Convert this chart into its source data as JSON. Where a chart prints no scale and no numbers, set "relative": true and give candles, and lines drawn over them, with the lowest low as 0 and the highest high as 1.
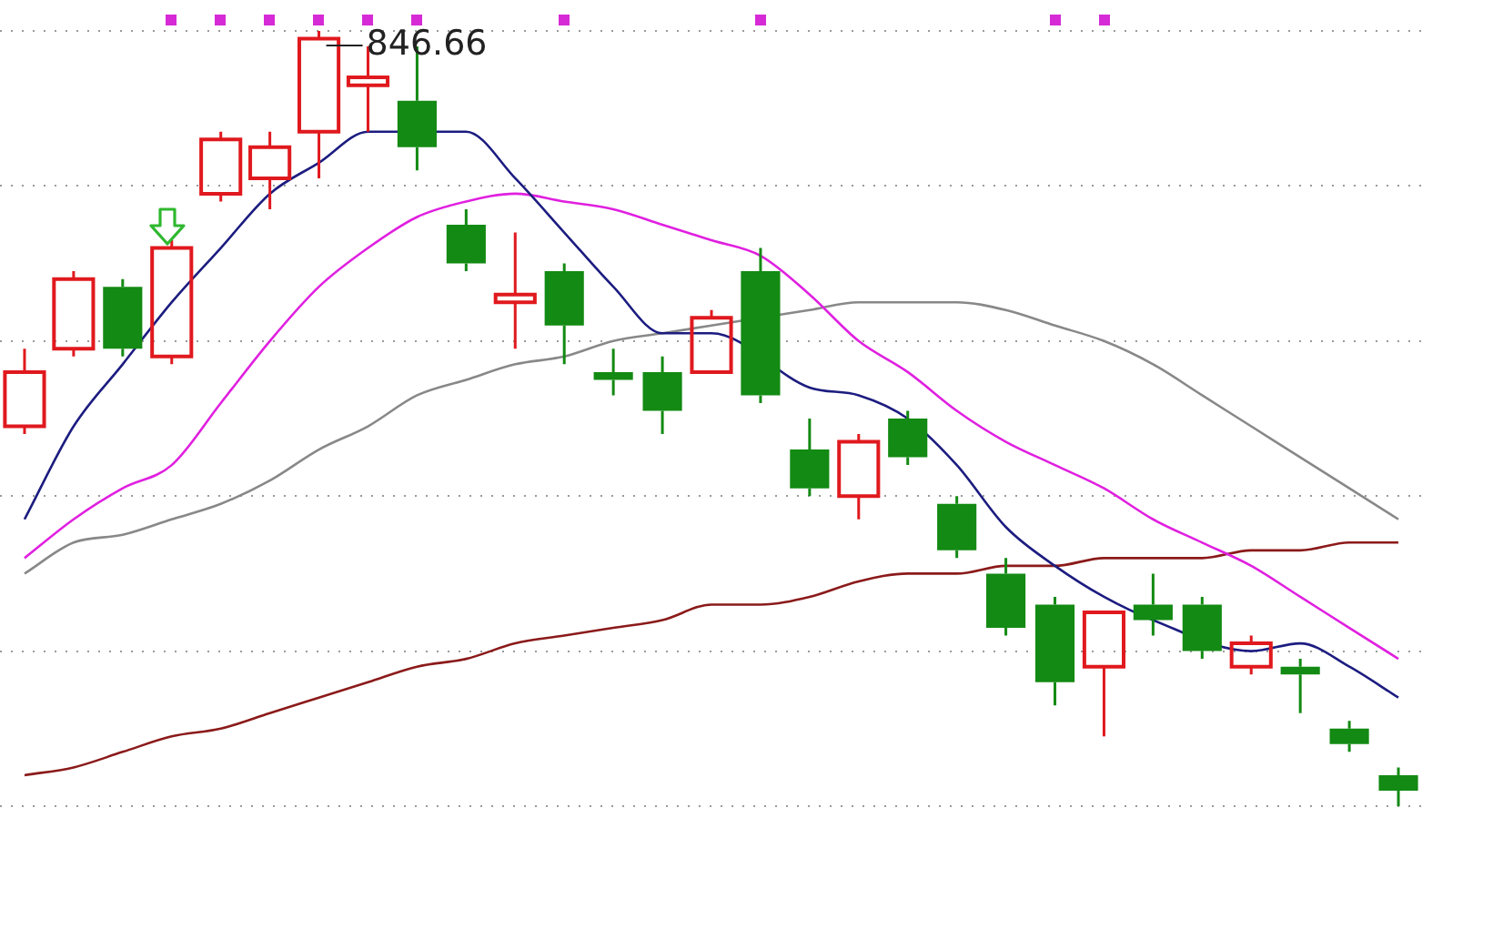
{
  "chart_data": {
    "type": "candlestick",
    "relative": true,
    "grid": "y",
    "legend": false,
    "tick_labels": false,
    "categories": [
      null,
      null,
      null,
      null,
      null,
      null,
      null,
      null,
      null,
      null,
      null,
      null,
      null,
      null,
      null,
      null,
      null,
      null,
      null,
      null,
      null,
      null,
      null,
      null,
      null,
      null,
      null,
      null,
      null
    ],
    "ohlc": [
      [
        0.49,
        0.59,
        0.48,
        0.56
      ],
      [
        0.59,
        0.69,
        0.58,
        0.68
      ],
      [
        0.67,
        0.68,
        0.58,
        0.59
      ],
      [
        0.58,
        0.73,
        0.57,
        0.72
      ],
      [
        0.79,
        0.87,
        0.78,
        0.86
      ],
      [
        0.81,
        0.87,
        0.77,
        0.85
      ],
      [
        0.87,
        1,
        0.81,
        0.99
      ],
      [
        0.93,
        0.98,
        0.87,
        0.94
      ],
      [
        0.91,
        0.98,
        0.82,
        0.85
      ],
      [
        0.75,
        0.77,
        0.69,
        0.7
      ],
      [
        0.65,
        0.74,
        0.59,
        0.66
      ],
      [
        0.69,
        0.7,
        0.57,
        0.62
      ],
      [
        0.56,
        0.59,
        0.53,
        0.55
      ],
      [
        0.56,
        0.58,
        0.48,
        0.51
      ],
      [
        0.56,
        0.64,
        0.56,
        0.63
      ],
      [
        0.69,
        0.72,
        0.52,
        0.53
      ],
      [
        0.46,
        0.5,
        0.4,
        0.41
      ],
      [
        0.4,
        0.48,
        0.37,
        0.47
      ],
      [
        0.5,
        0.51,
        0.44,
        0.45
      ],
      [
        0.39,
        0.4,
        0.32,
        0.33
      ],
      [
        0.3,
        0.32,
        0.22,
        0.23
      ],
      [
        0.26,
        0.27,
        0.13,
        0.16
      ],
      [
        0.18,
        0.25,
        0.09,
        0.25
      ],
      [
        0.26,
        0.3,
        0.22,
        0.24
      ],
      [
        0.26,
        0.27,
        0.19,
        0.2
      ],
      [
        0.18,
        0.22,
        0.17,
        0.21
      ],
      [
        0.18,
        0.19,
        0.12,
        0.17
      ],
      [
        0.1,
        0.11,
        0.07,
        0.08
      ],
      [
        0.04,
        0.05,
        0,
        0.02
      ]
    ],
    "colors": [
      "#e0191e",
      "#e0191e",
      "#138a13",
      "#e0191e",
      "#e0191e",
      "#e0191e",
      "#e0191e",
      "#e0191e",
      "#138a13",
      "#138a13",
      "#e0191e",
      "#138a13",
      "#138a13",
      "#138a13",
      "#e0191e",
      "#138a13",
      "#138a13",
      "#e0191e",
      "#138a13",
      "#138a13",
      "#138a13",
      "#138a13",
      "#e0191e",
      "#138a13",
      "#138a13",
      "#e0191e",
      "#138a13",
      "#138a13",
      "#138a13"
    ],
    "series": [
      {
        "type": "line",
        "color": "#1c1c80",
        "values": [
          0.37,
          0.49,
          0.57,
          0.65,
          0.72,
          0.79,
          0.83,
          0.87,
          null,
          0.87,
          0.81,
          0.74,
          0.67,
          0.61,
          0.61,
          null,
          0.54,
          0.53,
          0.5,
          0.44,
          0.36,
          0.31,
          0.27,
          0.24,
          null,
          0.2,
          0.21,
          0.18,
          0.14
        ]
      },
      {
        "type": "line",
        "color": "#e020e0",
        "values": [
          0.32,
          0.37,
          0.41,
          0.44,
          0.52,
          0.6,
          0.67,
          0.72,
          0.76,
          0.78,
          0.79,
          0.78,
          0.77,
          0.75,
          0.73,
          0.71,
          0.66,
          0.6,
          0.56,
          0.51,
          0.47,
          0.44,
          0.41,
          0.37,
          0.34,
          0.31,
          0.27,
          0.23,
          0.19
        ]
      },
      {
        "type": "line",
        "color": "#888888",
        "values": [
          0.3,
          0.34,
          0.35,
          0.37,
          0.39,
          0.42,
          0.46,
          0.49,
          0.53,
          0.55,
          0.57,
          0.58,
          0.6,
          0.61,
          0.62,
          null,
          0.64,
          0.65,
          0.65,
          0.65,
          0.64,
          0.62,
          0.6,
          0.57,
          0.53,
          0.49,
          0.45,
          0.41,
          0.37
        ]
      },
      {
        "type": "line",
        "color": "#8b1a1a",
        "values": [
          0.04,
          0.05,
          0.07,
          0.09,
          0.1,
          0.12,
          0.14,
          0.16,
          0.18,
          0.19,
          0.21,
          0.22,
          0.23,
          0.24,
          0.26,
          0.26,
          0.27,
          0.29,
          0.3,
          0.3,
          0.31,
          0.31,
          0.32,
          0.32,
          0.32,
          0.33,
          0.33,
          0.34,
          0.34
        ]
      }
    ],
    "annotations": [
      "846.66"
    ]
  }
}
